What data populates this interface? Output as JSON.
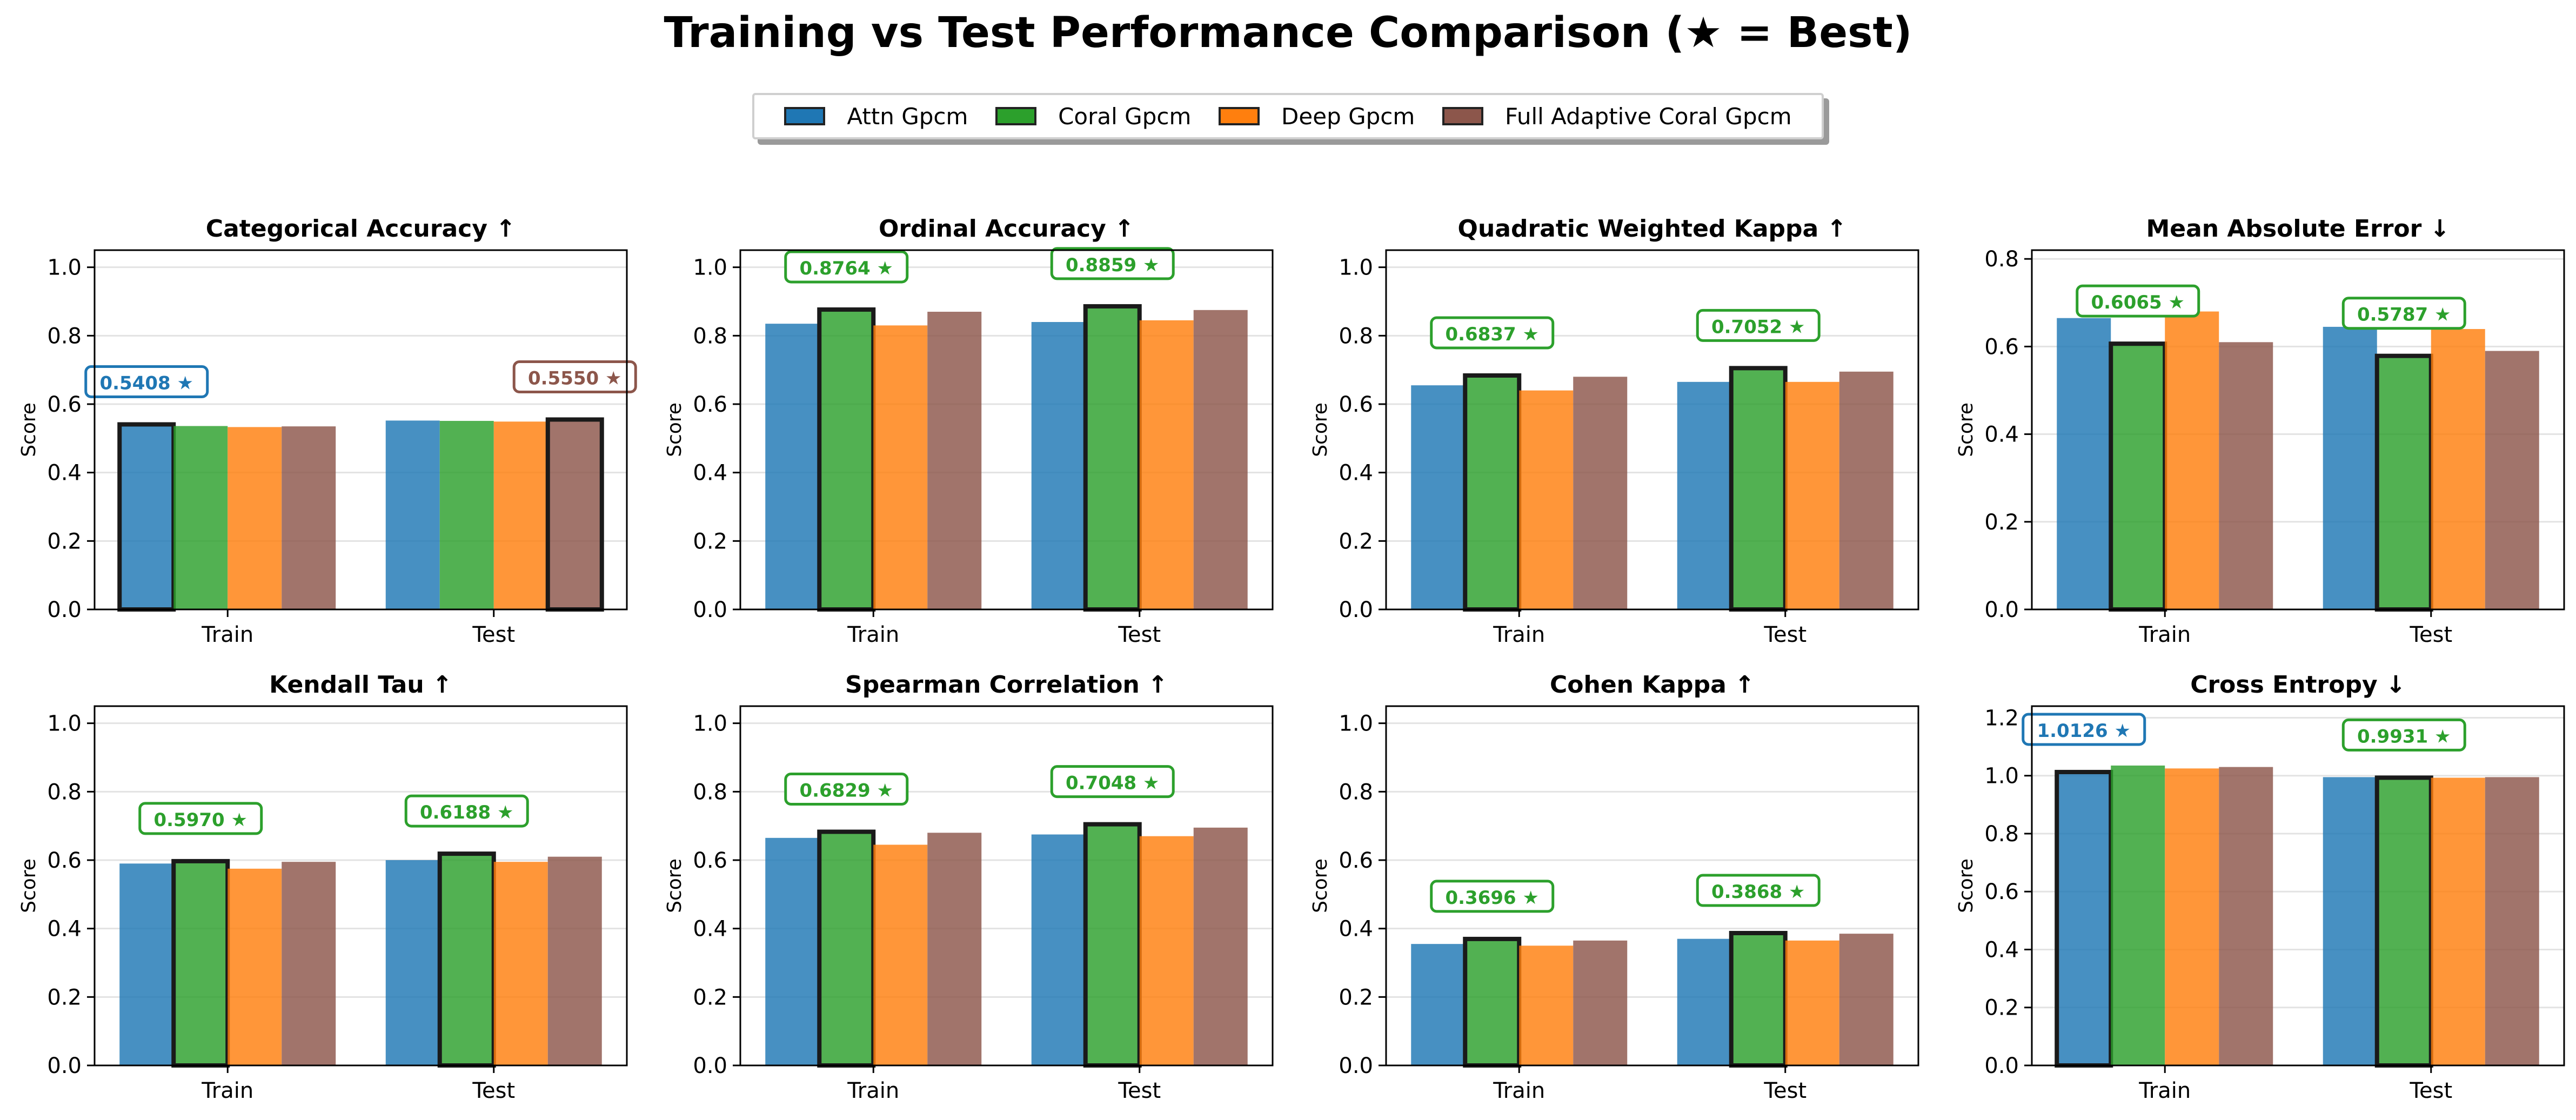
{
  "title": "Training vs Test Performance Comparison (★ = Best)",
  "colors": {
    "Attn Gpcm": "#1f77b4",
    "Coral Gpcm": "#2ca02c",
    "Deep Gpcm": "#ff7f0e",
    "Full Adaptive Coral Gpcm": "#8c564b"
  },
  "legend": [
    "Attn Gpcm",
    "Coral Gpcm",
    "Deep Gpcm",
    "Full Adaptive Coral Gpcm"
  ],
  "chart_data": [
    {
      "type": "bar",
      "title": "Categorical Accuracy ↑",
      "ylabel": "Score",
      "xlabel": "",
      "categories": [
        "Train",
        "Test"
      ],
      "ylim": [
        0,
        1.05
      ],
      "yticks": [
        "0.0",
        "0.2",
        "0.4",
        "0.6",
        "0.8",
        "1.0"
      ],
      "grid": true,
      "series": [
        {
          "name": "Attn Gpcm",
          "values": [
            0.5408,
            0.552
          ]
        },
        {
          "name": "Coral Gpcm",
          "values": [
            0.536,
            0.551
          ]
        },
        {
          "name": "Deep Gpcm",
          "values": [
            0.533,
            0.549
          ]
        },
        {
          "name": "Full Adaptive Coral Gpcm",
          "values": [
            0.535,
            0.555
          ]
        }
      ],
      "best": [
        {
          "category": "Train",
          "series": "Attn Gpcm",
          "label": "0.5408 ★"
        },
        {
          "category": "Test",
          "series": "Full Adaptive Coral Gpcm",
          "label": "0.5550 ★"
        }
      ]
    },
    {
      "type": "bar",
      "title": "Ordinal Accuracy ↑",
      "ylabel": "Score",
      "xlabel": "",
      "categories": [
        "Train",
        "Test"
      ],
      "ylim": [
        0,
        1.05
      ],
      "yticks": [
        "0.0",
        "0.2",
        "0.4",
        "0.6",
        "0.8",
        "1.0"
      ],
      "grid": true,
      "series": [
        {
          "name": "Attn Gpcm",
          "values": [
            0.835,
            0.84
          ]
        },
        {
          "name": "Coral Gpcm",
          "values": [
            0.8764,
            0.8859
          ]
        },
        {
          "name": "Deep Gpcm",
          "values": [
            0.83,
            0.845
          ]
        },
        {
          "name": "Full Adaptive Coral Gpcm",
          "values": [
            0.87,
            0.875
          ]
        }
      ],
      "best": [
        {
          "category": "Train",
          "series": "Coral Gpcm",
          "label": "0.8764 ★"
        },
        {
          "category": "Test",
          "series": "Coral Gpcm",
          "label": "0.8859 ★"
        }
      ]
    },
    {
      "type": "bar",
      "title": "Quadratic Weighted Kappa ↑",
      "ylabel": "Score",
      "xlabel": "",
      "categories": [
        "Train",
        "Test"
      ],
      "ylim": [
        0,
        1.05
      ],
      "yticks": [
        "0.0",
        "0.2",
        "0.4",
        "0.6",
        "0.8",
        "1.0"
      ],
      "grid": true,
      "series": [
        {
          "name": "Attn Gpcm",
          "values": [
            0.655,
            0.665
          ]
        },
        {
          "name": "Coral Gpcm",
          "values": [
            0.6837,
            0.7052
          ]
        },
        {
          "name": "Deep Gpcm",
          "values": [
            0.64,
            0.665
          ]
        },
        {
          "name": "Full Adaptive Coral Gpcm",
          "values": [
            0.68,
            0.695
          ]
        }
      ],
      "best": [
        {
          "category": "Train",
          "series": "Coral Gpcm",
          "label": "0.6837 ★"
        },
        {
          "category": "Test",
          "series": "Coral Gpcm",
          "label": "0.7052 ★"
        }
      ]
    },
    {
      "type": "bar",
      "title": "Mean Absolute Error ↓",
      "ylabel": "Score",
      "xlabel": "",
      "categories": [
        "Train",
        "Test"
      ],
      "ylim": [
        0,
        0.82
      ],
      "yticks": [
        "0.0",
        "0.2",
        "0.4",
        "0.6",
        "0.8"
      ],
      "grid": true,
      "series": [
        {
          "name": "Attn Gpcm",
          "values": [
            0.665,
            0.645
          ]
        },
        {
          "name": "Coral Gpcm",
          "values": [
            0.6065,
            0.5787
          ]
        },
        {
          "name": "Deep Gpcm",
          "values": [
            0.68,
            0.64
          ]
        },
        {
          "name": "Full Adaptive Coral Gpcm",
          "values": [
            0.61,
            0.59
          ]
        }
      ],
      "best": [
        {
          "category": "Train",
          "series": "Coral Gpcm",
          "label": "0.6065 ★"
        },
        {
          "category": "Test",
          "series": "Coral Gpcm",
          "label": "0.5787 ★"
        }
      ]
    },
    {
      "type": "bar",
      "title": "Kendall Tau ↑",
      "ylabel": "Score",
      "xlabel": "",
      "categories": [
        "Train",
        "Test"
      ],
      "ylim": [
        0,
        1.05
      ],
      "yticks": [
        "0.0",
        "0.2",
        "0.4",
        "0.6",
        "0.8",
        "1.0"
      ],
      "grid": true,
      "series": [
        {
          "name": "Attn Gpcm",
          "values": [
            0.59,
            0.6
          ]
        },
        {
          "name": "Coral Gpcm",
          "values": [
            0.597,
            0.6188
          ]
        },
        {
          "name": "Deep Gpcm",
          "values": [
            0.575,
            0.595
          ]
        },
        {
          "name": "Full Adaptive Coral Gpcm",
          "values": [
            0.595,
            0.61
          ]
        }
      ],
      "best": [
        {
          "category": "Train",
          "series": "Coral Gpcm",
          "label": "0.5970 ★"
        },
        {
          "category": "Test",
          "series": "Coral Gpcm",
          "label": "0.6188 ★"
        }
      ]
    },
    {
      "type": "bar",
      "title": "Spearman Correlation ↑",
      "ylabel": "Score",
      "xlabel": "",
      "categories": [
        "Train",
        "Test"
      ],
      "ylim": [
        0,
        1.05
      ],
      "yticks": [
        "0.0",
        "0.2",
        "0.4",
        "0.6",
        "0.8",
        "1.0"
      ],
      "grid": true,
      "series": [
        {
          "name": "Attn Gpcm",
          "values": [
            0.665,
            0.675
          ]
        },
        {
          "name": "Coral Gpcm",
          "values": [
            0.6829,
            0.7048
          ]
        },
        {
          "name": "Deep Gpcm",
          "values": [
            0.645,
            0.67
          ]
        },
        {
          "name": "Full Adaptive Coral Gpcm",
          "values": [
            0.68,
            0.695
          ]
        }
      ],
      "best": [
        {
          "category": "Train",
          "series": "Coral Gpcm",
          "label": "0.6829 ★"
        },
        {
          "category": "Test",
          "series": "Coral Gpcm",
          "label": "0.7048 ★"
        }
      ]
    },
    {
      "type": "bar",
      "title": "Cohen Kappa ↑",
      "ylabel": "Score",
      "xlabel": "",
      "categories": [
        "Train",
        "Test"
      ],
      "ylim": [
        0,
        1.05
      ],
      "yticks": [
        "0.0",
        "0.2",
        "0.4",
        "0.6",
        "0.8",
        "1.0"
      ],
      "grid": true,
      "series": [
        {
          "name": "Attn Gpcm",
          "values": [
            0.355,
            0.37
          ]
        },
        {
          "name": "Coral Gpcm",
          "values": [
            0.3696,
            0.3868
          ]
        },
        {
          "name": "Deep Gpcm",
          "values": [
            0.35,
            0.365
          ]
        },
        {
          "name": "Full Adaptive Coral Gpcm",
          "values": [
            0.365,
            0.385
          ]
        }
      ],
      "best": [
        {
          "category": "Train",
          "series": "Coral Gpcm",
          "label": "0.3696 ★"
        },
        {
          "category": "Test",
          "series": "Coral Gpcm",
          "label": "0.3868 ★"
        }
      ]
    },
    {
      "type": "bar",
      "title": "Cross Entropy ↓",
      "ylabel": "Score",
      "xlabel": "",
      "categories": [
        "Train",
        "Test"
      ],
      "ylim": [
        0,
        1.24
      ],
      "yticks": [
        "0.0",
        "0.2",
        "0.4",
        "0.6",
        "0.8",
        "1.0",
        "1.2"
      ],
      "grid": true,
      "series": [
        {
          "name": "Attn Gpcm",
          "values": [
            1.0126,
            0.995
          ]
        },
        {
          "name": "Coral Gpcm",
          "values": [
            1.035,
            0.9931
          ]
        },
        {
          "name": "Deep Gpcm",
          "values": [
            1.025,
            0.993
          ]
        },
        {
          "name": "Full Adaptive Coral Gpcm",
          "values": [
            1.03,
            0.995
          ]
        }
      ],
      "best": [
        {
          "category": "Train",
          "series": "Attn Gpcm",
          "label": "1.0126 ★"
        },
        {
          "category": "Test",
          "series": "Coral Gpcm",
          "label": "0.9931 ★"
        }
      ]
    }
  ]
}
